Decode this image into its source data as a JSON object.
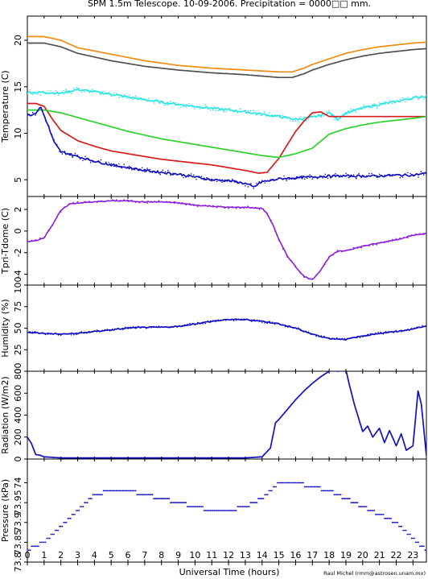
{
  "title": "SPM 1.5m Telescope. 10-09-2006. Precipitation = 0000□□ mm.",
  "credit": "Raul Michel (rmm@astrosen.unam.mx)",
  "xlabel": "Universal Time (hours)",
  "x_ticks": [
    0,
    1,
    2,
    3,
    4,
    5,
    6,
    7,
    8,
    9,
    10,
    11,
    12,
    13,
    14,
    15,
    16,
    17,
    18,
    19,
    20,
    21,
    22,
    23
  ],
  "xlim": [
    0,
    23.8
  ],
  "colors": {
    "orange": "#f08c14",
    "gray": "#505050",
    "cyan": "#28e6e6",
    "red": "#d81c1c",
    "green": "#2ad22a",
    "blue": "#1010c0",
    "purple": "#8a1ee0"
  },
  "chart_data": [
    {
      "type": "line",
      "ylabel": "Temperature (C)",
      "ylim": [
        3.2,
        22.6
      ],
      "y_ticks": [
        5,
        10,
        15,
        20
      ],
      "series": [
        {
          "color": "orange",
          "x": [
            0,
            1,
            2,
            3,
            5,
            7,
            9,
            11,
            13,
            15,
            15.8,
            16.5,
            17,
            18,
            19,
            20,
            21,
            22,
            23,
            23.8
          ],
          "y": [
            20.4,
            20.4,
            20.0,
            19.2,
            18.5,
            17.8,
            17.3,
            17.0,
            16.8,
            16.6,
            16.6,
            17.0,
            17.4,
            18.0,
            18.6,
            19.0,
            19.3,
            19.5,
            19.7,
            19.8
          ]
        },
        {
          "color": "gray",
          "x": [
            0,
            1,
            2,
            3,
            5,
            7,
            9,
            11,
            13,
            15,
            15.8,
            16.5,
            17,
            18,
            19,
            20,
            21,
            22,
            23,
            23.8
          ],
          "y": [
            19.7,
            19.7,
            19.3,
            18.6,
            17.8,
            17.2,
            16.8,
            16.5,
            16.3,
            16.0,
            16.0,
            16.4,
            16.8,
            17.4,
            17.9,
            18.3,
            18.6,
            18.8,
            19.0,
            19.1
          ]
        },
        {
          "color": "cyan",
          "x": [
            0,
            1,
            2,
            3,
            5,
            7,
            9,
            11,
            13,
            15,
            16,
            17,
            18,
            18.5,
            19,
            20,
            21,
            22,
            23,
            23.8
          ],
          "y": [
            14.4,
            14.4,
            14.3,
            14.7,
            14.2,
            13.6,
            13.1,
            12.7,
            12.3,
            11.8,
            11.5,
            11.7,
            12.2,
            11.5,
            12.2,
            12.7,
            13.1,
            13.4,
            13.8,
            14.0
          ]
        },
        {
          "color": "red",
          "x": [
            0,
            0.5,
            1,
            1.5,
            2,
            3,
            4,
            5,
            6,
            7,
            8,
            9,
            10,
            11,
            12,
            13,
            13.8,
            14.3,
            15,
            16,
            16.5,
            17,
            17.5,
            18,
            19,
            20,
            21,
            22,
            23,
            23.8
          ],
          "y": [
            13.2,
            13.2,
            12.9,
            11.5,
            10.3,
            9.2,
            8.6,
            8.1,
            7.8,
            7.5,
            7.2,
            7.0,
            6.8,
            6.6,
            6.3,
            6.0,
            5.7,
            5.8,
            7.3,
            10.2,
            11.3,
            12.2,
            12.3,
            11.8,
            11.8,
            11.8,
            11.8,
            11.8,
            11.8,
            11.8
          ]
        },
        {
          "color": "green",
          "x": [
            0,
            1,
            2,
            3,
            4,
            5,
            6,
            7,
            8,
            9,
            10,
            11,
            12,
            13,
            14,
            15,
            16,
            17,
            18,
            19,
            20,
            21,
            22,
            23,
            23.8
          ],
          "y": [
            12.5,
            12.5,
            12.2,
            11.7,
            11.2,
            10.7,
            10.2,
            9.8,
            9.4,
            9.1,
            8.8,
            8.5,
            8.2,
            7.9,
            7.6,
            7.4,
            7.8,
            8.4,
            9.9,
            10.5,
            10.9,
            11.2,
            11.4,
            11.6,
            11.8
          ]
        },
        {
          "color": "blue",
          "x": [
            0,
            0.4,
            0.8,
            1.2,
            1.6,
            2,
            3,
            4,
            5,
            6,
            7,
            8,
            9,
            10,
            11,
            12,
            13,
            13.5,
            14,
            14.5,
            15,
            16,
            17,
            18,
            19,
            20,
            21,
            22,
            23,
            23.8
          ],
          "y": [
            12.0,
            12.0,
            12.8,
            11.0,
            9.0,
            8.0,
            7.5,
            7.0,
            6.6,
            6.3,
            6.0,
            5.8,
            5.6,
            5.3,
            5.0,
            4.9,
            4.6,
            4.2,
            4.8,
            4.9,
            5.1,
            5.2,
            5.3,
            5.4,
            5.4,
            5.4,
            5.4,
            5.5,
            5.5,
            5.7
          ]
        }
      ]
    },
    {
      "type": "scatter",
      "ylabel": "Tpri-Tdome (C)",
      "ylim": [
        -5.0,
        3.2
      ],
      "y_ticks": [
        -4,
        -2,
        0,
        2
      ],
      "series": [
        {
          "color": "purple",
          "x": [
            0,
            0.5,
            1,
            1.5,
            2,
            2.5,
            3,
            4,
            5,
            6,
            7,
            8,
            9,
            10,
            11,
            12,
            13,
            14,
            14.3,
            14.7,
            15,
            15.5,
            16,
            16.5,
            17,
            17.5,
            18,
            18.3,
            18.5,
            19,
            20,
            21,
            22,
            23,
            23.8
          ],
          "y": [
            -1.0,
            -0.9,
            -0.6,
            0.6,
            1.9,
            2.5,
            2.6,
            2.7,
            2.8,
            2.8,
            2.7,
            2.7,
            2.6,
            2.4,
            2.3,
            2.2,
            2.2,
            2.1,
            1.6,
            0.4,
            -0.8,
            -2.3,
            -3.3,
            -4.2,
            -4.5,
            -3.6,
            -2.4,
            -2.1,
            -1.9,
            -1.8,
            -1.4,
            -1.1,
            -0.8,
            -0.4,
            -0.2
          ]
        }
      ]
    },
    {
      "type": "line",
      "ylabel": "Humidity (%)",
      "ylim": [
        0,
        100
      ],
      "y_ticks": [
        0,
        25,
        50,
        75,
        100
      ],
      "series": [
        {
          "color": "blue",
          "x": [
            0,
            1,
            2,
            3,
            4,
            5,
            6,
            7,
            8,
            9,
            10,
            11,
            12,
            13,
            14,
            15,
            16,
            17,
            18,
            19,
            20,
            21,
            22,
            23,
            23.8
          ],
          "y": [
            45,
            44,
            43,
            44,
            46,
            48,
            50,
            51,
            51,
            52,
            55,
            58,
            60,
            60,
            58,
            55,
            50,
            43,
            38,
            37,
            41,
            44,
            46,
            49,
            53
          ]
        }
      ]
    },
    {
      "type": "line",
      "ylabel": "Radiation (W/m2)",
      "ylim": [
        0,
        800
      ],
      "y_ticks": [
        0,
        200,
        400,
        600,
        800
      ],
      "series": [
        {
          "color": "blue",
          "x": [
            0,
            0.25,
            0.5,
            0.75,
            1,
            1.5,
            2,
            3,
            4,
            5,
            6,
            7,
            8,
            9,
            10,
            11,
            12,
            13,
            13.5,
            14,
            14.5,
            14.8,
            15,
            15.5,
            16,
            16.5,
            17,
            17.5,
            18,
            18.2,
            18.5,
            19,
            19.2,
            19.5,
            20,
            20.3,
            20.6,
            21,
            21.3,
            21.6,
            22,
            22.3,
            22.6,
            23,
            23.3,
            23.5,
            23.8
          ],
          "y": [
            200,
            140,
            40,
            35,
            20,
            15,
            10,
            10,
            10,
            10,
            10,
            10,
            10,
            10,
            10,
            10,
            10,
            10,
            15,
            20,
            100,
            330,
            360,
            450,
            540,
            620,
            690,
            750,
            800,
            810,
            800,
            810,
            680,
            500,
            250,
            300,
            200,
            280,
            150,
            260,
            120,
            230,
            80,
            120,
            620,
            500,
            30
          ]
        }
      ]
    },
    {
      "type": "scatter",
      "ylabel": "Pressure (kPa)",
      "ylim": [
        73.8,
        74.06
      ],
      "y_ticks": [
        73.8,
        73.85,
        73.9,
        73.95,
        74.0
      ],
      "series": [
        {
          "color": "blue",
          "x": [
            0,
            0.5,
            1,
            1.5,
            2,
            2.5,
            3,
            3.5,
            4,
            5,
            6,
            7,
            8,
            9,
            10,
            11,
            12,
            13,
            14,
            14.5,
            15,
            16,
            17,
            18,
            19,
            20,
            21,
            22,
            22.5,
            23,
            23.5,
            23.8
          ],
          "y": [
            73.83,
            73.84,
            73.85,
            73.87,
            73.89,
            73.91,
            73.93,
            73.95,
            73.97,
            73.98,
            73.98,
            73.97,
            73.96,
            73.95,
            73.94,
            73.93,
            73.93,
            73.94,
            73.96,
            73.98,
            74.0,
            74.0,
            73.99,
            73.98,
            73.96,
            73.94,
            73.92,
            73.9,
            73.88,
            73.86,
            73.84,
            73.83
          ]
        }
      ]
    }
  ]
}
